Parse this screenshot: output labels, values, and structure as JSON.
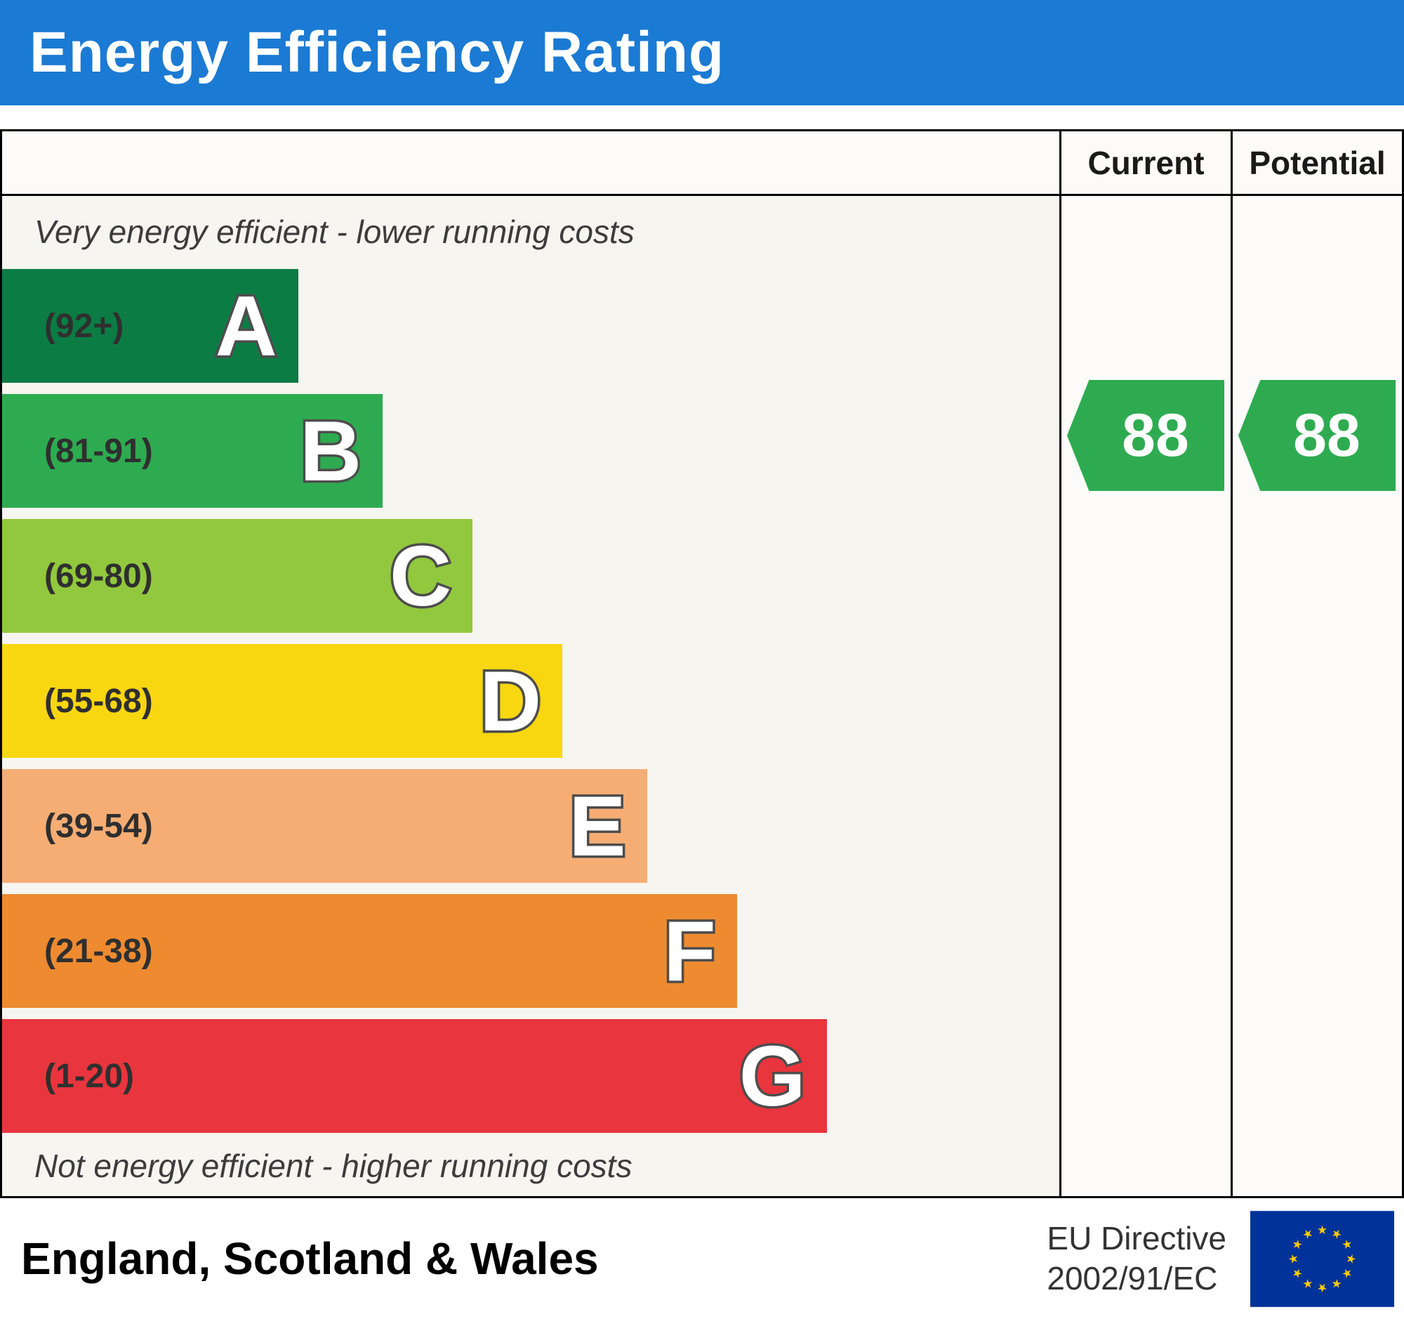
{
  "header": {
    "title": "Energy Efficiency Rating",
    "bg_color": "#1b7ad3",
    "text_color": "#ffffff"
  },
  "columns": {
    "current_label": "Current",
    "potential_label": "Potential"
  },
  "notes": {
    "top": "Very energy efficient - lower running costs",
    "bottom": "Not energy efficient - higher running costs"
  },
  "chart_data": {
    "type": "bar",
    "title": "Energy Efficiency Rating",
    "bands": [
      {
        "letter": "A",
        "range": "(92+)",
        "min": 92,
        "max": 100,
        "color": "#0c7c45",
        "width_pct": 28
      },
      {
        "letter": "B",
        "range": "(81-91)",
        "min": 81,
        "max": 91,
        "color": "#2eab50",
        "width_pct": 36
      },
      {
        "letter": "C",
        "range": "(69-80)",
        "min": 69,
        "max": 80,
        "color": "#92c83e",
        "width_pct": 44.5
      },
      {
        "letter": "D",
        "range": "(55-68)",
        "min": 55,
        "max": 68,
        "color": "#f8d610",
        "width_pct": 53
      },
      {
        "letter": "E",
        "range": "(39-54)",
        "min": 39,
        "max": 54,
        "color": "#f5ad74",
        "width_pct": 61
      },
      {
        "letter": "F",
        "range": "(21-38)",
        "min": 21,
        "max": 38,
        "color": "#ee8b31",
        "width_pct": 69.5
      },
      {
        "letter": "G",
        "range": "(1-20)",
        "min": 1,
        "max": 20,
        "color": "#e9353d",
        "width_pct": 78
      }
    ],
    "ratings": {
      "current": {
        "value": 88,
        "band": "B",
        "color": "#2eab50"
      },
      "potential": {
        "value": 88,
        "band": "B",
        "color": "#2eab50"
      }
    }
  },
  "footer": {
    "region": "England, Scotland & Wales",
    "directive_line1": "EU Directive",
    "directive_line2": "2002/91/EC",
    "eu_flag": {
      "bg": "#003399",
      "star": "#ffcc00"
    }
  }
}
